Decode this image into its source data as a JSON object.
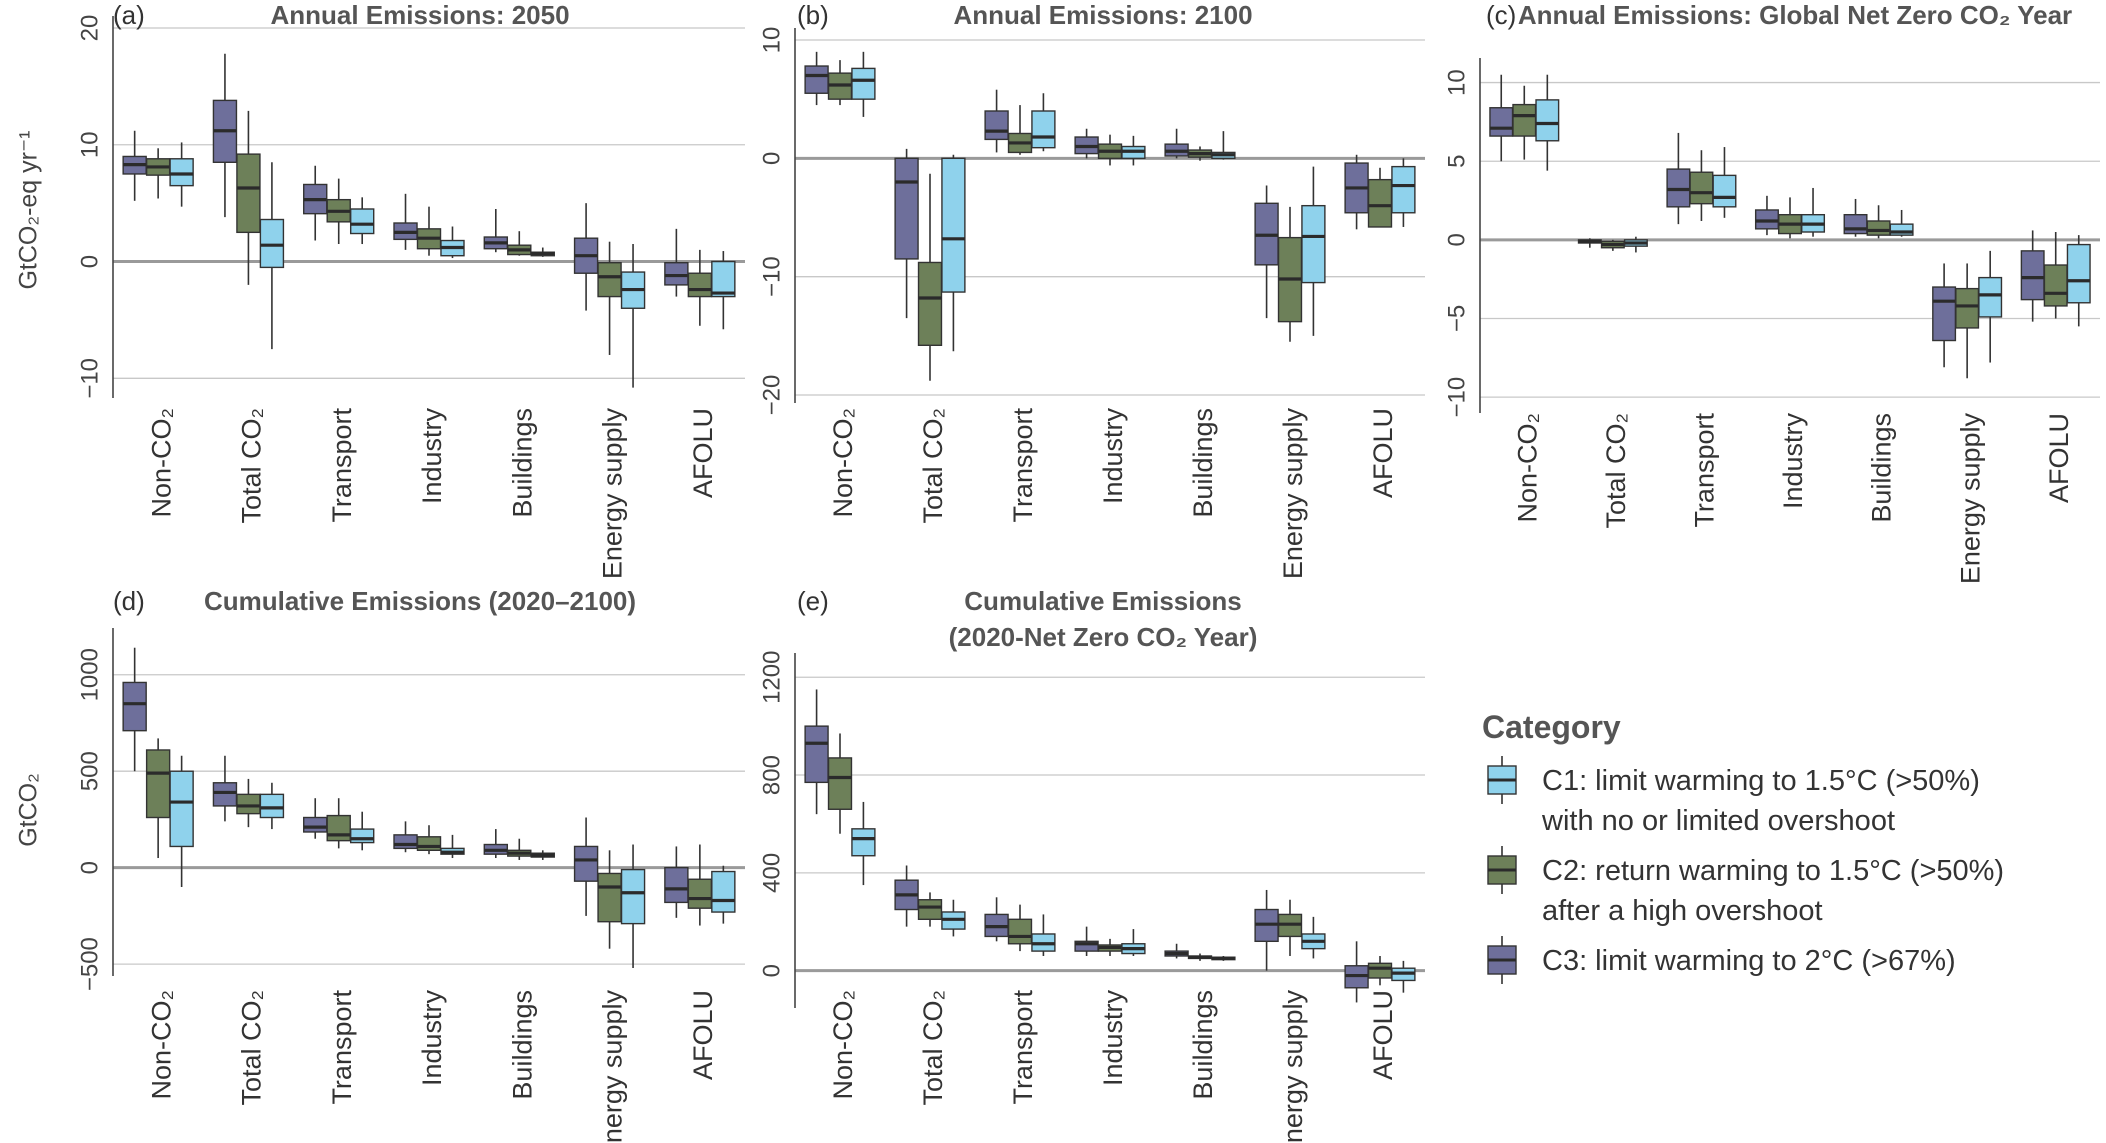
{
  "colors": {
    "C1": "#8fd2ec",
    "C2": "#6d8059",
    "C3": "#6e6f9b",
    "median": "#2b2b2b",
    "grid": "#c8c8c8",
    "zero": "#9a9a9a"
  },
  "legend": {
    "title": "Category",
    "items": [
      {
        "key": "C1",
        "lines": [
          "C1: limit warming to 1.5°C (>50%)",
          "with no or limited overshoot"
        ]
      },
      {
        "key": "C2",
        "lines": [
          "C2: return warming to 1.5°C (>50%)",
          "after a high overshoot"
        ]
      },
      {
        "key": "C3",
        "lines": [
          "C3: limit warming to 2°C (>67%)"
        ]
      }
    ]
  },
  "chart_data": [
    {
      "type": "box",
      "id": "a",
      "label": "(a)",
      "title": [
        "Annual Emissions: 2050"
      ],
      "ylabel": "GtCO₂-eq yr⁻¹",
      "ylim": [
        -11,
        20
      ],
      "ticks": [
        -10,
        0,
        10,
        20
      ],
      "categories": [
        "Non-CO₂",
        "Total CO₂",
        "Transport",
        "Industry",
        "Buildings",
        "Energy supply",
        "AFOLU"
      ],
      "series": [
        {
          "name": "C3",
          "boxes": [
            [
              5.2,
              7.5,
              8.3,
              9.0,
              11.2
            ],
            [
              3.8,
              8.5,
              11.2,
              13.8,
              17.8
            ],
            [
              1.8,
              4.1,
              5.3,
              6.6,
              8.2
            ],
            [
              1.0,
              1.9,
              2.5,
              3.3,
              5.8
            ],
            [
              0.8,
              1.1,
              1.6,
              2.1,
              4.5
            ],
            [
              -4.2,
              -1.0,
              0.5,
              2.0,
              5.0
            ],
            [
              -3.0,
              -2.0,
              -1.2,
              -0.1,
              2.8
            ]
          ]
        },
        {
          "name": "C2",
          "boxes": [
            [
              5.4,
              7.4,
              8.1,
              8.8,
              9.7
            ],
            [
              -2.0,
              2.5,
              6.3,
              9.2,
              12.9
            ],
            [
              1.5,
              3.4,
              4.3,
              5.3,
              7.1
            ],
            [
              0.5,
              1.1,
              2.0,
              2.8,
              4.7
            ],
            [
              0.5,
              0.6,
              1.0,
              1.4,
              2.6
            ],
            [
              -8.0,
              -3.0,
              -1.3,
              -0.1,
              1.7
            ],
            [
              -5.5,
              -3.0,
              -2.4,
              -1.0,
              1.0
            ]
          ]
        },
        {
          "name": "C1",
          "boxes": [
            [
              4.7,
              6.5,
              7.5,
              8.8,
              10.2
            ],
            [
              -7.5,
              -0.5,
              1.4,
              3.6,
              8.5
            ],
            [
              1.5,
              2.4,
              3.2,
              4.5,
              5.5
            ],
            [
              0.3,
              0.5,
              1.2,
              1.8,
              3.0
            ],
            [
              0.4,
              0.5,
              0.7,
              0.8,
              1.2
            ],
            [
              -10.8,
              -4.0,
              -2.4,
              -0.9,
              1.5
            ],
            [
              -5.8,
              -3.0,
              -2.7,
              0.0,
              0.9
            ]
          ]
        }
      ]
    },
    {
      "type": "box",
      "id": "b",
      "label": "(b)",
      "title": [
        "Annual Emissions: 2100"
      ],
      "ylabel": "",
      "ylim": [
        -20,
        10
      ],
      "ticks": [
        -20,
        -10,
        0,
        10
      ],
      "categories": [
        "Non-CO₂",
        "Total CO₂",
        "Transport",
        "Industry",
        "Buildings",
        "Energy supply",
        "AFOLU"
      ],
      "series": [
        {
          "name": "C3",
          "boxes": [
            [
              4.5,
              5.5,
              7.0,
              7.8,
              9.0
            ],
            [
              -13.5,
              -8.5,
              -2.0,
              0.0,
              0.8
            ],
            [
              0.5,
              1.6,
              2.3,
              4.0,
              5.8
            ],
            [
              0.0,
              0.4,
              1.0,
              1.8,
              2.5
            ],
            [
              0.0,
              0.2,
              0.6,
              1.2,
              2.5
            ],
            [
              -13.5,
              -9.0,
              -6.5,
              -3.8,
              -2.3
            ],
            [
              -6.0,
              -4.6,
              -2.5,
              -0.4,
              0.3
            ]
          ]
        },
        {
          "name": "C2",
          "boxes": [
            [
              4.5,
              5.0,
              6.2,
              7.2,
              8.3
            ],
            [
              -18.8,
              -15.8,
              -11.8,
              -8.8,
              -1.3
            ],
            [
              0.3,
              0.5,
              1.3,
              2.1,
              4.5
            ],
            [
              -0.6,
              0.0,
              0.6,
              1.2,
              2.0
            ],
            [
              -0.2,
              0.1,
              0.4,
              0.7,
              1.0
            ],
            [
              -15.5,
              -13.8,
              -10.2,
              -6.7,
              -4.1
            ],
            [
              -5.8,
              -5.8,
              -4.0,
              -1.8,
              -0.8
            ]
          ]
        },
        {
          "name": "C1",
          "boxes": [
            [
              3.5,
              5.0,
              6.6,
              7.6,
              9.0
            ],
            [
              -16.3,
              -11.3,
              -6.8,
              0.0,
              0.3
            ],
            [
              0.6,
              0.9,
              1.8,
              4.0,
              5.5
            ],
            [
              -0.6,
              0.0,
              0.6,
              1.0,
              1.9
            ],
            [
              -0.1,
              0.0,
              0.3,
              0.5,
              2.3
            ],
            [
              -15.0,
              -10.5,
              -6.6,
              -4.0,
              -0.7
            ],
            [
              -5.8,
              -4.6,
              -2.3,
              -0.7,
              0.0
            ]
          ]
        }
      ]
    },
    {
      "type": "box",
      "id": "c",
      "label": "(c)",
      "title": [
        "Annual Emissions: Global Net Zero CO₂ Year"
      ],
      "ylabel": "",
      "ylim": [
        -10.5,
        10.8
      ],
      "ticks": [
        -10,
        -5,
        0,
        5,
        10
      ],
      "categories": [
        "Non-CO₂",
        "Total CO₂",
        "Transport",
        "Industry",
        "Buildings",
        "Energy supply",
        "AFOLU"
      ],
      "series": [
        {
          "name": "C3",
          "boxes": [
            [
              5.0,
              6.6,
              7.1,
              8.4,
              10.5
            ],
            [
              -0.5,
              -0.2,
              -0.1,
              0.0,
              0.1
            ],
            [
              1.0,
              2.1,
              3.2,
              4.5,
              6.8
            ],
            [
              0.3,
              0.7,
              1.2,
              1.9,
              2.8
            ],
            [
              0.2,
              0.4,
              0.7,
              1.6,
              2.6
            ],
            [
              -8.1,
              -6.4,
              -3.9,
              -3.0,
              -1.5
            ],
            [
              -5.2,
              -3.8,
              -2.4,
              -0.7,
              0.6
            ]
          ]
        },
        {
          "name": "C2",
          "boxes": [
            [
              5.1,
              6.6,
              7.9,
              8.6,
              9.8
            ],
            [
              -0.7,
              -0.5,
              -0.3,
              -0.1,
              0.0
            ],
            [
              1.2,
              2.3,
              3.0,
              4.3,
              5.7
            ],
            [
              0.1,
              0.4,
              1.0,
              1.6,
              2.7
            ],
            [
              0.1,
              0.3,
              0.6,
              1.2,
              2.2
            ],
            [
              -8.8,
              -5.6,
              -4.2,
              -3.1,
              -1.5
            ],
            [
              -5.0,
              -4.2,
              -3.4,
              -1.6,
              0.5
            ]
          ]
        },
        {
          "name": "C1",
          "boxes": [
            [
              4.4,
              6.3,
              7.4,
              8.9,
              10.5
            ],
            [
              -0.8,
              -0.4,
              -0.2,
              0.0,
              0.2
            ],
            [
              1.4,
              2.1,
              2.7,
              4.1,
              5.9
            ],
            [
              0.2,
              0.5,
              1.0,
              1.6,
              3.3
            ],
            [
              0.2,
              0.3,
              0.5,
              1.0,
              1.9
            ],
            [
              -7.8,
              -4.9,
              -3.5,
              -2.4,
              -0.7
            ],
            [
              -5.5,
              -4.0,
              -2.6,
              -0.3,
              0.3
            ]
          ]
        }
      ]
    },
    {
      "type": "box",
      "id": "d",
      "label": "(d)",
      "title": [
        "Cumulative Emissions (2020–2100)"
      ],
      "ylabel": "GtCO₂",
      "ylim": [
        -520,
        1180
      ],
      "ticks": [
        -500,
        0,
        500,
        1000
      ],
      "categories": [
        "Non-CO₂",
        "Total CO₂",
        "Transport",
        "Industry",
        "Buildings",
        "Energy supply",
        "AFOLU"
      ],
      "series": [
        {
          "name": "C3",
          "boxes": [
            [
              500,
              710,
              850,
              960,
              1140
            ],
            [
              240,
              320,
              390,
              440,
              580
            ],
            [
              150,
              185,
              210,
              260,
              360
            ],
            [
              80,
              100,
              120,
              170,
              240
            ],
            [
              50,
              70,
              90,
              120,
              200
            ],
            [
              -250,
              -70,
              40,
              110,
              260
            ],
            [
              -260,
              -180,
              -110,
              0,
              110
            ]
          ]
        },
        {
          "name": "C2",
          "boxes": [
            [
              50,
              260,
              490,
              610,
              670
            ],
            [
              210,
              280,
              320,
              380,
              460
            ],
            [
              100,
              140,
              170,
              270,
              360
            ],
            [
              70,
              90,
              110,
              160,
              220
            ],
            [
              40,
              60,
              75,
              90,
              150
            ],
            [
              -420,
              -280,
              -100,
              -30,
              90
            ],
            [
              -300,
              -210,
              -160,
              -60,
              120
            ]
          ]
        },
        {
          "name": "C1",
          "boxes": [
            [
              -100,
              110,
              340,
              500,
              580
            ],
            [
              200,
              260,
              310,
              380,
              440
            ],
            [
              90,
              130,
              150,
              200,
              290
            ],
            [
              50,
              70,
              80,
              100,
              170
            ],
            [
              40,
              55,
              65,
              75,
              90
            ],
            [
              -520,
              -290,
              -130,
              -10,
              120
            ],
            [
              -290,
              -230,
              -170,
              -20,
              10
            ]
          ]
        }
      ]
    },
    {
      "type": "box",
      "id": "e",
      "label": "(e)",
      "title": [
        "Cumulative Emissions",
        "(2020-Net Zero CO₂ Year)"
      ],
      "ylabel": "",
      "ylim": [
        -120,
        1250
      ],
      "ticks": [
        0,
        400,
        800,
        1200
      ],
      "categories": [
        "Non-CO₂",
        "Total CO₂",
        "Transport",
        "Industry",
        "Buildings",
        "Energy supply",
        "AFOLU"
      ],
      "series": [
        {
          "name": "C3",
          "boxes": [
            [
              640,
              770,
              930,
              1000,
              1150
            ],
            [
              180,
              250,
              310,
              370,
              430
            ],
            [
              120,
              140,
              180,
              230,
              300
            ],
            [
              60,
              80,
              110,
              120,
              180
            ],
            [
              50,
              60,
              70,
              80,
              110
            ],
            [
              0,
              120,
              190,
              250,
              330
            ],
            [
              -130,
              -70,
              -20,
              20,
              120
            ]
          ]
        },
        {
          "name": "C2",
          "boxes": [
            [
              560,
              660,
              790,
              870,
              970
            ],
            [
              180,
              210,
              260,
              290,
              320
            ],
            [
              80,
              110,
              140,
              210,
              270
            ],
            [
              60,
              80,
              95,
              105,
              130
            ],
            [
              40,
              50,
              55,
              60,
              70
            ],
            [
              60,
              140,
              190,
              230,
              290
            ],
            [
              -60,
              -30,
              10,
              30,
              60
            ]
          ]
        },
        {
          "name": "C1",
          "boxes": [
            [
              350,
              470,
              540,
              580,
              690
            ],
            [
              140,
              170,
              210,
              240,
              290
            ],
            [
              60,
              80,
              110,
              150,
              230
            ],
            [
              60,
              70,
              90,
              110,
              170
            ],
            [
              40,
              45,
              50,
              55,
              60
            ],
            [
              50,
              90,
              120,
              150,
              220
            ],
            [
              -90,
              -40,
              -10,
              10,
              40
            ]
          ]
        }
      ]
    }
  ]
}
